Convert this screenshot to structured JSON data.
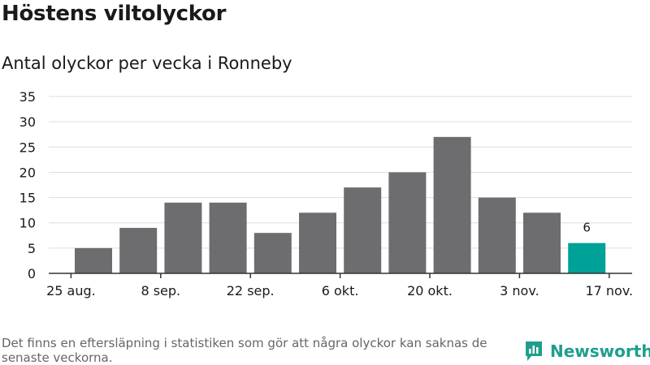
{
  "title": "Höstens viltolyckor",
  "subtitle": "Antal olyckor per vecka i Ronneby",
  "footnote": "Det finns en eftersläpning i statistiken som gör att några olyckor kan saknas de senaste veckorna.",
  "brand": {
    "name": "Newsworthy",
    "icon": "bar-chart-logo-icon"
  },
  "colors": {
    "bar": "#6d6d70",
    "highlight": "#00a197",
    "grid": "#dddddd",
    "axis": "#333333",
    "brand": "#1f9e8c"
  },
  "chart_data": {
    "type": "bar",
    "title": "Höstens viltolyckor",
    "subtitle": "Antal olyckor per vecka i Ronneby",
    "values": [
      5,
      9,
      14,
      14,
      8,
      12,
      17,
      20,
      27,
      15,
      12,
      6
    ],
    "highlight_index": 11,
    "data_labels": [
      {
        "index": 11,
        "text": "6"
      }
    ],
    "x_tick_labels": [
      {
        "label": "25 aug.",
        "position": -0.5
      },
      {
        "label": "8 sep.",
        "position": 1.5
      },
      {
        "label": "22 sep.",
        "position": 3.5
      },
      {
        "label": "6 okt.",
        "position": 5.5
      },
      {
        "label": "20 okt.",
        "position": 7.5
      },
      {
        "label": "3 nov.",
        "position": 9.5
      },
      {
        "label": "17 nov.",
        "position": 11.5
      }
    ],
    "y_ticks": [
      0,
      5,
      10,
      15,
      20,
      25,
      30,
      35
    ],
    "ylim": [
      0,
      35
    ],
    "grid": true,
    "xlabel": "",
    "ylabel": ""
  }
}
